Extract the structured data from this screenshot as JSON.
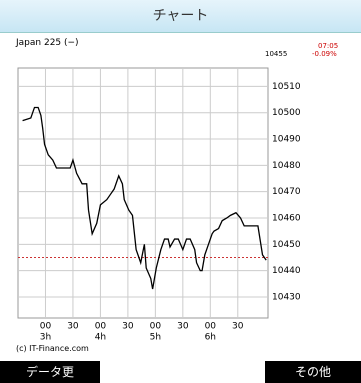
{
  "header": {
    "title": "チャート"
  },
  "quote": {
    "name": "Japan 225 (−)",
    "price": "10455",
    "time": "07:05",
    "change": "-0.09%"
  },
  "chart_data": {
    "type": "line",
    "x": [
      155,
      164,
      168,
      172,
      175,
      177,
      179,
      183,
      188,
      192,
      201,
      207,
      210,
      214,
      220,
      225,
      227,
      231,
      236,
      240,
      247,
      251,
      255,
      260,
      264,
      266,
      271,
      275,
      279,
      284,
      288,
      290,
      295,
      297,
      301,
      306,
      310,
      314,
      316,
      321,
      325,
      330,
      334,
      338,
      343,
      345,
      349,
      351,
      354,
      358,
      362,
      364,
      369,
      373,
      378,
      382,
      388,
      393,
      397,
      408,
      412,
      417,
      421
    ],
    "values": [
      10497,
      10498,
      10502,
      10502,
      10499,
      10494,
      10488,
      10484,
      10482,
      10479,
      10479,
      10479,
      10482,
      10477,
      10473,
      10473,
      10463,
      10454,
      10458,
      10465,
      10467,
      10469,
      10471,
      10476,
      10473,
      10467,
      10463,
      10461,
      10448,
      10443,
      10450,
      10441,
      10437,
      10433,
      10441,
      10448,
      10452,
      10452,
      10449,
      10452,
      10452,
      10448,
      10452,
      10452,
      10448,
      10443,
      10440,
      10440,
      10446,
      10450,
      10454,
      10455,
      10456,
      10459,
      10460,
      10461,
      10462,
      10460,
      10457,
      10457,
      10457,
      10446,
      10444
    ],
    "color": "#000000",
    "xlim": [
      150,
      423
    ],
    "ylim": [
      10422,
      10517
    ],
    "yticks": [
      10430,
      10440,
      10450,
      10460,
      10470,
      10480,
      10490,
      10500,
      10510
    ],
    "xticks": [
      {
        "value": 180,
        "label": "00"
      },
      {
        "value": 210,
        "label": "30"
      },
      {
        "value": 240,
        "label": "00"
      },
      {
        "value": 270,
        "label": "30"
      },
      {
        "value": 300,
        "label": "00"
      },
      {
        "value": 330,
        "label": "30"
      },
      {
        "value": 360,
        "label": "00"
      },
      {
        "value": 390,
        "label": "30"
      }
    ],
    "xticks_hours": [
      {
        "value": 180,
        "label": "3h"
      },
      {
        "value": 240,
        "label": "4h"
      },
      {
        "value": 300,
        "label": "5h"
      },
      {
        "value": 360,
        "label": "6h"
      }
    ],
    "grid": true,
    "reference_line": {
      "value": 10445,
      "color": "#cc3333"
    }
  },
  "footer": {
    "copyright": "(c) IT-Finance.com",
    "left_button": "データ更",
    "right_button": "その他"
  }
}
